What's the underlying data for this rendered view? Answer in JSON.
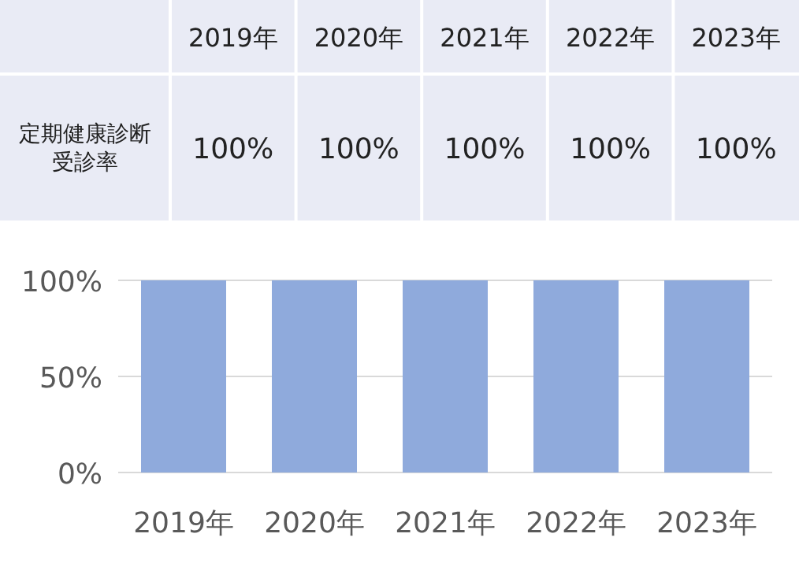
{
  "chart_data": {
    "type": "bar",
    "categories": [
      "2019年",
      "2020年",
      "2021年",
      "2022年",
      "2023年"
    ],
    "values": [
      100,
      100,
      100,
      100,
      100
    ],
    "value_labels": [
      "100%",
      "100%",
      "100%",
      "100%",
      "100%"
    ],
    "color": "#8faadc",
    "annotations": [
      "定期健康診断受診率"
    ],
    "ylim": [
      0,
      100
    ],
    "yticks": [
      {
        "value": 0,
        "label": "0%"
      },
      {
        "value": 50,
        "label": "50%"
      },
      {
        "value": 100,
        "label": "100%"
      }
    ],
    "grid": "y"
  }
}
